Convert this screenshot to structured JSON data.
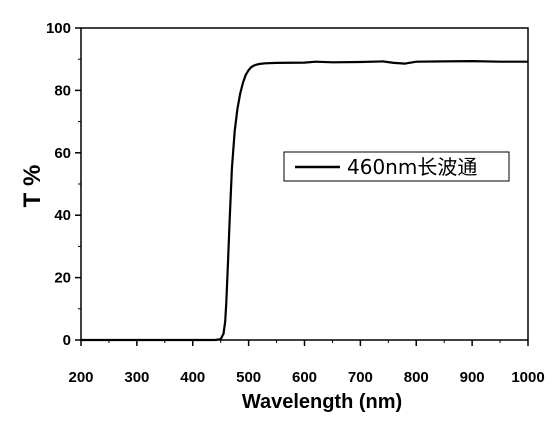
{
  "chart_data": {
    "type": "line",
    "xlabel": "Wavelength (nm)",
    "ylabel": "T %",
    "xlim": [
      200,
      1000
    ],
    "ylim": [
      0,
      100
    ],
    "x_ticks": [
      200,
      300,
      400,
      500,
      600,
      700,
      800,
      900,
      1000
    ],
    "y_ticks": [
      0,
      20,
      40,
      60,
      80,
      100
    ],
    "grid": false,
    "legend_position": "center-right",
    "series": [
      {
        "name": "460nm长波通",
        "color": "#000000",
        "x": [
          200,
          300,
          400,
          440,
          450,
          455,
          458,
          460,
          463,
          466,
          470,
          475,
          480,
          485,
          490,
          495,
          500,
          505,
          510,
          515,
          520,
          530,
          550,
          600,
          620,
          650,
          700,
          740,
          760,
          780,
          800,
          850,
          900,
          950,
          1000
        ],
        "y": [
          0,
          0,
          0,
          0,
          0.3,
          2,
          6,
          12,
          25,
          38,
          55,
          67,
          74,
          79,
          82.5,
          85,
          86.5,
          87.5,
          88,
          88.3,
          88.5,
          88.7,
          88.8,
          88.9,
          89.2,
          89,
          89.1,
          89.3,
          88.8,
          88.6,
          89.2,
          89.3,
          89.4,
          89.2,
          89.2
        ]
      }
    ]
  }
}
